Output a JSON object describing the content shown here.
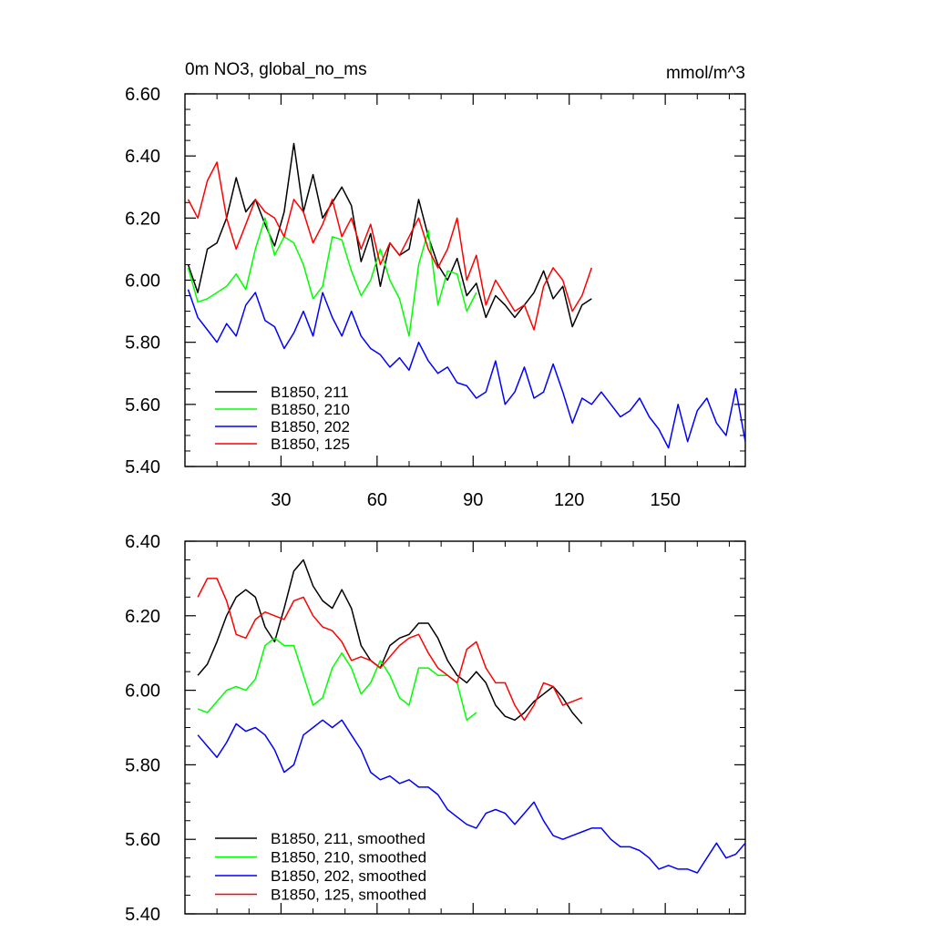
{
  "chart_data": [
    {
      "type": "line",
      "title_left": "0m NO3, global_no_ms",
      "title_right": "mmol/m^3",
      "xlim": [
        0,
        175
      ],
      "ylim": [
        5.4,
        6.6
      ],
      "x_ticks": [
        30,
        60,
        90,
        120,
        150
      ],
      "x_tick_labels": [
        "30",
        "60",
        "90",
        "120",
        "150"
      ],
      "y_ticks": [
        5.4,
        5.6,
        5.8,
        6.0,
        6.2,
        6.4,
        6.6
      ],
      "y_tick_labels": [
        "5.40",
        "5.60",
        "5.80",
        "6.00",
        "6.20",
        "6.40",
        "6.60"
      ],
      "legend_position": "bottom-left",
      "series": [
        {
          "name": "B1850, 211",
          "color": "#000000",
          "x": [
            1,
            4,
            7,
            10,
            13,
            16,
            19,
            22,
            25,
            28,
            31,
            34,
            37,
            40,
            43,
            46,
            49,
            52,
            55,
            58,
            61,
            64,
            67,
            70,
            73,
            76,
            79,
            82,
            85,
            88,
            91,
            94,
            97,
            100,
            103,
            106,
            109,
            112,
            115,
            118,
            121,
            124,
            127
          ],
          "values": [
            6.05,
            5.96,
            6.1,
            6.12,
            6.2,
            6.33,
            6.22,
            6.26,
            6.18,
            6.11,
            6.22,
            6.44,
            6.22,
            6.34,
            6.2,
            6.25,
            6.3,
            6.24,
            6.06,
            6.15,
            5.98,
            6.12,
            6.08,
            6.1,
            6.26,
            6.14,
            6.05,
            6.0,
            6.07,
            5.95,
            5.99,
            5.88,
            5.95,
            5.92,
            5.88,
            5.92,
            5.96,
            6.03,
            5.94,
            5.98,
            5.85,
            5.92,
            5.94
          ]
        },
        {
          "name": "B1850, 210",
          "color": "#00ff00",
          "x": [
            1,
            4,
            7,
            10,
            13,
            16,
            19,
            22,
            25,
            28,
            31,
            34,
            37,
            40,
            43,
            46,
            49,
            52,
            55,
            58,
            61,
            64,
            67,
            70,
            73,
            76,
            79,
            82,
            85,
            88,
            91
          ],
          "values": [
            6.04,
            5.93,
            5.94,
            5.96,
            5.98,
            6.02,
            5.97,
            6.1,
            6.2,
            6.08,
            6.14,
            6.12,
            6.05,
            5.94,
            5.98,
            6.14,
            6.13,
            6.03,
            5.95,
            6.0,
            6.1,
            6.0,
            5.94,
            5.82,
            6.05,
            6.16,
            5.92,
            6.03,
            6.02,
            5.9,
            5.96
          ]
        },
        {
          "name": "B1850, 202",
          "color": "#0000ff",
          "x": [
            1,
            4,
            7,
            10,
            13,
            16,
            19,
            22,
            25,
            28,
            31,
            34,
            37,
            40,
            43,
            46,
            49,
            52,
            55,
            58,
            61,
            64,
            67,
            70,
            73,
            76,
            79,
            82,
            85,
            88,
            91,
            94,
            97,
            100,
            103,
            106,
            109,
            112,
            115,
            118,
            121,
            124,
            127,
            130,
            133,
            136,
            139,
            142,
            145,
            148,
            151,
            154,
            157,
            160,
            163,
            166,
            169,
            172,
            175
          ],
          "values": [
            5.97,
            5.88,
            5.84,
            5.8,
            5.86,
            5.82,
            5.92,
            5.96,
            5.87,
            5.85,
            5.78,
            5.83,
            5.9,
            5.82,
            5.96,
            5.88,
            5.82,
            5.9,
            5.82,
            5.78,
            5.76,
            5.72,
            5.75,
            5.71,
            5.8,
            5.74,
            5.7,
            5.72,
            5.67,
            5.66,
            5.62,
            5.64,
            5.74,
            5.6,
            5.64,
            5.72,
            5.62,
            5.64,
            5.73,
            5.64,
            5.54,
            5.62,
            5.6,
            5.64,
            5.6,
            5.56,
            5.58,
            5.62,
            5.56,
            5.52,
            5.46,
            5.6,
            5.48,
            5.58,
            5.62,
            5.54,
            5.5,
            5.65,
            5.48
          ]
        },
        {
          "name": "B1850, 125",
          "color": "#ff0000",
          "x": [
            1,
            4,
            7,
            10,
            13,
            16,
            19,
            22,
            25,
            28,
            31,
            34,
            37,
            40,
            43,
            46,
            49,
            52,
            55,
            58,
            61,
            64,
            67,
            70,
            73,
            76,
            79,
            82,
            85,
            88,
            91,
            94,
            97,
            100,
            103,
            106,
            109,
            112,
            115,
            118,
            121,
            124,
            127
          ],
          "values": [
            6.26,
            6.2,
            6.32,
            6.38,
            6.2,
            6.1,
            6.18,
            6.26,
            6.22,
            6.2,
            6.14,
            6.26,
            6.22,
            6.12,
            6.18,
            6.26,
            6.14,
            6.2,
            6.1,
            6.18,
            6.05,
            6.12,
            6.08,
            6.14,
            6.2,
            6.1,
            6.04,
            6.1,
            6.2,
            6.0,
            6.08,
            5.92,
            6.0,
            5.95,
            5.9,
            5.92,
            5.84,
            5.98,
            6.04,
            6.0,
            5.9,
            5.95,
            6.04
          ]
        }
      ]
    },
    {
      "type": "line",
      "xlim": [
        0,
        175
      ],
      "ylim": [
        5.4,
        6.4
      ],
      "x_ticks": [
        30,
        60,
        90,
        120,
        150
      ],
      "y_ticks": [
        5.4,
        5.6,
        5.8,
        6.0,
        6.2,
        6.4
      ],
      "y_tick_labels": [
        "5.40",
        "5.60",
        "5.80",
        "6.00",
        "6.20",
        "6.40"
      ],
      "legend_position": "bottom-left",
      "series": [
        {
          "name": "B1850, 211, smoothed",
          "color": "#000000",
          "x": [
            4,
            7,
            10,
            13,
            16,
            19,
            22,
            25,
            28,
            31,
            34,
            37,
            40,
            43,
            46,
            49,
            52,
            55,
            58,
            61,
            64,
            67,
            70,
            73,
            76,
            79,
            82,
            85,
            88,
            91,
            94,
            97,
            100,
            103,
            106,
            109,
            112,
            115,
            118,
            121,
            124
          ],
          "values": [
            6.04,
            6.07,
            6.13,
            6.2,
            6.25,
            6.27,
            6.25,
            6.17,
            6.13,
            6.22,
            6.32,
            6.35,
            6.28,
            6.24,
            6.22,
            6.27,
            6.22,
            6.12,
            6.08,
            6.06,
            6.12,
            6.14,
            6.15,
            6.18,
            6.18,
            6.14,
            6.08,
            6.04,
            6.02,
            6.05,
            6.02,
            5.96,
            5.93,
            5.92,
            5.94,
            5.97,
            5.99,
            6.01,
            5.98,
            5.94,
            5.91
          ]
        },
        {
          "name": "B1850, 210, smoothed",
          "color": "#00ff00",
          "x": [
            4,
            7,
            10,
            13,
            16,
            19,
            22,
            25,
            28,
            31,
            34,
            37,
            40,
            43,
            46,
            49,
            52,
            55,
            58,
            61,
            64,
            67,
            70,
            73,
            76,
            79,
            82,
            85,
            88,
            91
          ],
          "values": [
            5.95,
            5.94,
            5.97,
            6.0,
            6.01,
            6.0,
            6.03,
            6.12,
            6.14,
            6.12,
            6.12,
            6.04,
            5.96,
            5.98,
            6.06,
            6.1,
            6.06,
            5.99,
            6.02,
            6.08,
            6.04,
            5.98,
            5.96,
            6.06,
            6.06,
            6.04,
            6.04,
            6.02,
            5.92,
            5.94
          ]
        },
        {
          "name": "B1850, 202, smoothed",
          "color": "#0000ff",
          "x": [
            4,
            7,
            10,
            13,
            16,
            19,
            22,
            25,
            28,
            31,
            34,
            37,
            40,
            43,
            46,
            49,
            52,
            55,
            58,
            61,
            64,
            67,
            70,
            73,
            76,
            79,
            82,
            85,
            88,
            91,
            94,
            97,
            100,
            103,
            106,
            109,
            112,
            115,
            118,
            121,
            124,
            127,
            130,
            133,
            136,
            139,
            142,
            145,
            148,
            151,
            154,
            157,
            160,
            163,
            166,
            169,
            172,
            175
          ],
          "values": [
            5.88,
            5.85,
            5.82,
            5.86,
            5.91,
            5.89,
            5.9,
            5.88,
            5.84,
            5.78,
            5.8,
            5.88,
            5.9,
            5.92,
            5.9,
            5.92,
            5.88,
            5.84,
            5.78,
            5.76,
            5.77,
            5.75,
            5.76,
            5.74,
            5.74,
            5.72,
            5.68,
            5.66,
            5.64,
            5.63,
            5.67,
            5.68,
            5.67,
            5.64,
            5.67,
            5.7,
            5.65,
            5.61,
            5.6,
            5.61,
            5.62,
            5.63,
            5.63,
            5.6,
            5.58,
            5.58,
            5.57,
            5.55,
            5.52,
            5.53,
            5.52,
            5.52,
            5.51,
            5.55,
            5.59,
            5.55,
            5.56,
            5.59
          ]
        },
        {
          "name": "B1850, 125, smoothed",
          "color": "#ff0000",
          "x": [
            4,
            7,
            10,
            13,
            16,
            19,
            22,
            25,
            28,
            31,
            34,
            37,
            40,
            43,
            46,
            49,
            52,
            55,
            58,
            61,
            64,
            67,
            70,
            73,
            76,
            79,
            82,
            85,
            88,
            91,
            94,
            97,
            100,
            103,
            106,
            109,
            112,
            115,
            118,
            121,
            124
          ],
          "values": [
            6.25,
            6.3,
            6.3,
            6.24,
            6.15,
            6.14,
            6.19,
            6.21,
            6.2,
            6.19,
            6.24,
            6.25,
            6.2,
            6.17,
            6.16,
            6.13,
            6.08,
            6.09,
            6.08,
            6.06,
            6.09,
            6.12,
            6.14,
            6.15,
            6.1,
            6.06,
            6.04,
            6.02,
            6.11,
            6.13,
            6.06,
            6.02,
            6.02,
            5.96,
            5.92,
            5.96,
            6.02,
            6.01,
            5.96,
            5.97,
            5.98
          ]
        }
      ]
    }
  ]
}
